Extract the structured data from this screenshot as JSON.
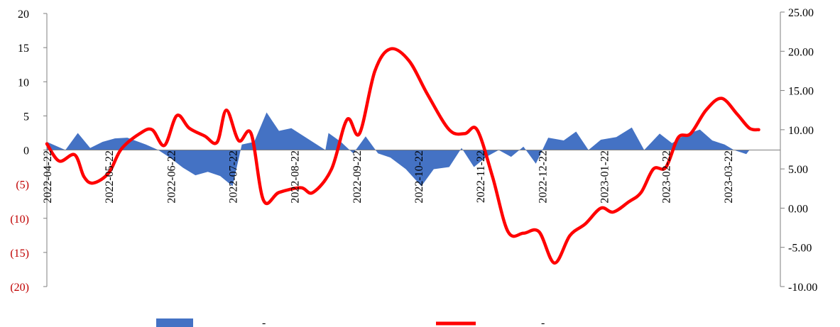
{
  "chart_data": {
    "type": "area-line-dual-axis",
    "title": "",
    "xlabel": "",
    "ylabel": "",
    "x_tick_labels": [
      "2022-04-22",
      "2022-05-22",
      "2022-06-22",
      "2022-07-22",
      "2022-08-22",
      "2022-09-22",
      "2022-10-22",
      "2022-11-22",
      "2022-12-22",
      "2023-01-22",
      "2023-02-22",
      "2023-03-22"
    ],
    "y_left": {
      "range": [
        -20,
        20
      ],
      "ticks": [
        20,
        15,
        10,
        5,
        0,
        -5,
        -10,
        -15,
        -20
      ],
      "tick_labels": [
        "20",
        "15",
        "10",
        "5",
        "0",
        "(5)",
        "(10)",
        "(15)",
        "(20)"
      ],
      "negative_label_color": "#c00000",
      "positive_label_color": "#000000"
    },
    "y_right": {
      "range": [
        -10,
        25
      ],
      "ticks": [
        25,
        20,
        15,
        10,
        5,
        0,
        -5,
        -10
      ],
      "tick_labels": [
        "25.00",
        "20.00",
        "15.00",
        "10.00",
        "5.00",
        "0.00",
        "-5.00",
        "-10.00"
      ]
    },
    "x_range": [
      0,
      11.85
    ],
    "series": [
      {
        "name": "",
        "legend_text": "-",
        "type": "area",
        "axis": "left",
        "color": "#4472c4",
        "points": [
          [
            0,
            1.2
          ],
          [
            0.3,
            0
          ],
          [
            0.5,
            2.5
          ],
          [
            0.7,
            0.3
          ],
          [
            0.9,
            1.2
          ],
          [
            1.1,
            1.7
          ],
          [
            1.3,
            1.8
          ],
          [
            1.6,
            0.8
          ],
          [
            1.8,
            0
          ],
          [
            2.0,
            -1.2
          ],
          [
            2.2,
            -2.6
          ],
          [
            2.4,
            -3.7
          ],
          [
            2.6,
            -3.2
          ],
          [
            2.8,
            -3.8
          ],
          [
            3.0,
            -5.3
          ],
          [
            3.15,
            0.8
          ],
          [
            3.35,
            1.2
          ],
          [
            3.55,
            5.5
          ],
          [
            3.75,
            2.8
          ],
          [
            3.95,
            3.2
          ],
          [
            4.5,
            0
          ],
          [
            4.55,
            2.5
          ],
          [
            4.75,
            1.2
          ],
          [
            4.95,
            -0.5
          ],
          [
            5.15,
            2.0
          ],
          [
            5.35,
            -0.5
          ],
          [
            5.55,
            -1.1
          ],
          [
            5.8,
            -2.8
          ],
          [
            6.05,
            -5.3
          ],
          [
            6.25,
            -2.8
          ],
          [
            6.5,
            -2.5
          ],
          [
            6.7,
            0.3
          ],
          [
            6.9,
            -2.5
          ],
          [
            7.1,
            -1.0
          ],
          [
            7.3,
            0
          ],
          [
            7.5,
            -1.0
          ],
          [
            7.7,
            0.5
          ],
          [
            7.9,
            -2.0
          ],
          [
            8.1,
            1.8
          ],
          [
            8.35,
            1.4
          ],
          [
            8.55,
            2.7
          ],
          [
            8.75,
            0
          ],
          [
            8.95,
            1.5
          ],
          [
            9.2,
            1.9
          ],
          [
            9.45,
            3.3
          ],
          [
            9.65,
            0
          ],
          [
            9.9,
            2.4
          ],
          [
            10.1,
            1.0
          ],
          [
            10.3,
            2.2
          ],
          [
            10.55,
            3.0
          ],
          [
            10.75,
            1.4
          ],
          [
            10.95,
            0.8
          ],
          [
            11.1,
            0
          ],
          [
            11.3,
            -0.6
          ],
          [
            11.35,
            0
          ]
        ]
      },
      {
        "name": "",
        "legend_text": "-",
        "type": "line",
        "axis": "right",
        "color": "#ff0000",
        "points": [
          [
            0,
            8.2
          ],
          [
            0.2,
            6.0
          ],
          [
            0.45,
            6.8
          ],
          [
            0.6,
            4.0
          ],
          [
            0.75,
            3.2
          ],
          [
            1.0,
            4.5
          ],
          [
            1.2,
            7.5
          ],
          [
            1.5,
            9.5
          ],
          [
            1.7,
            10.0
          ],
          [
            1.9,
            8.0
          ],
          [
            2.1,
            11.8
          ],
          [
            2.3,
            10.2
          ],
          [
            2.55,
            9.2
          ],
          [
            2.75,
            8.4
          ],
          [
            2.9,
            12.5
          ],
          [
            3.1,
            8.6
          ],
          [
            3.3,
            9.5
          ],
          [
            3.5,
            1.0
          ],
          [
            3.75,
            2.0
          ],
          [
            4.1,
            2.6
          ],
          [
            4.3,
            2.0
          ],
          [
            4.6,
            5.0
          ],
          [
            4.85,
            11.3
          ],
          [
            5.05,
            9.5
          ],
          [
            5.3,
            17.5
          ],
          [
            5.55,
            20.3
          ],
          [
            5.85,
            18.8
          ],
          [
            6.15,
            14.5
          ],
          [
            6.5,
            10.0
          ],
          [
            6.75,
            9.5
          ],
          [
            6.95,
            10.0
          ],
          [
            7.2,
            4.0
          ],
          [
            7.45,
            -3.0
          ],
          [
            7.7,
            -3.2
          ],
          [
            7.95,
            -3.0
          ],
          [
            8.2,
            -7.0
          ],
          [
            8.45,
            -3.5
          ],
          [
            8.7,
            -2.0
          ],
          [
            8.95,
            0
          ],
          [
            9.15,
            -0.5
          ],
          [
            9.4,
            0.8
          ],
          [
            9.6,
            2.0
          ],
          [
            9.8,
            5.0
          ],
          [
            10.0,
            5.2
          ],
          [
            10.2,
            9.0
          ],
          [
            10.4,
            9.5
          ],
          [
            10.65,
            12.5
          ],
          [
            10.9,
            14.0
          ],
          [
            11.15,
            12.0
          ],
          [
            11.35,
            10.2
          ],
          [
            11.5,
            10.0
          ]
        ]
      }
    ],
    "grid": false,
    "legend_position": "bottom"
  }
}
